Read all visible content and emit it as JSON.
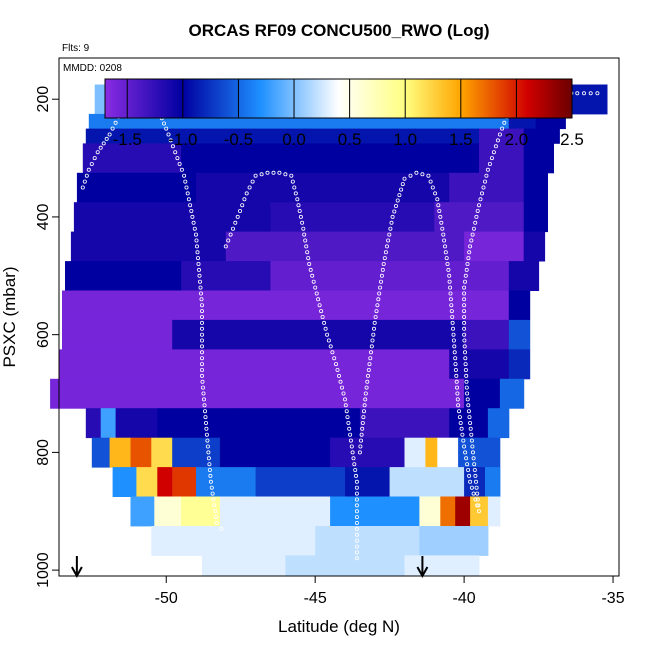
{
  "chart_data": {
    "type": "heatmap",
    "title": "ORCAS RF09 CONCU500_RWO (Log)",
    "xlabel": "Latitude (deg N)",
    "ylabel": "PSXC (mbar)",
    "annotations": {
      "flights": "Flts: 9",
      "mmdd": "MMDD: 0208"
    },
    "xlim": [
      -53.6,
      -34.8
    ],
    "ylim": [
      1010,
      130
    ],
    "y_reversed": true,
    "x_ticks": [
      -50,
      -45,
      -40,
      -35
    ],
    "x_tick_labels": [
      "-50",
      "-45",
      "-40",
      "-35"
    ],
    "y_ticks": [
      200,
      400,
      600,
      800,
      1000
    ],
    "y_tick_labels": [
      "200",
      "400",
      "600",
      "800",
      "1000"
    ],
    "colorbar": {
      "min": -1.7,
      "max": 2.5,
      "ticks": [
        -1.5,
        -1.0,
        -0.5,
        0.0,
        0.5,
        1.0,
        1.5,
        2.0,
        2.5
      ],
      "tick_labels": [
        "-1.5",
        "-1.0",
        "-0.5",
        "0.0",
        "0.5",
        "1.0",
        "1.5",
        "2.0",
        "2.5"
      ],
      "stops": [
        "#8a2be2",
        "#0000a0",
        "#1e90ff",
        "#ffffff",
        "#ffff80",
        "#ffa500",
        "#d00000",
        "#6b0000"
      ],
      "stop_values": [
        -1.7,
        -1.0,
        -0.3,
        0.4,
        1.0,
        1.5,
        2.1,
        2.5
      ]
    },
    "rows": [
      {
        "p_top": 175,
        "p_bot": 225,
        "segments": [
          [
            -52.4,
            -37.2,
            0.0
          ],
          [
            -37.2,
            -36.4,
            -0.4
          ],
          [
            -36.4,
            -35.2,
            -0.9
          ]
        ]
      },
      {
        "p_top": 225,
        "p_bot": 250,
        "segments": [
          [
            -52.6,
            -38.5,
            -0.4
          ],
          [
            -38.5,
            -37.6,
            -0.9
          ],
          [
            -37.6,
            -36.6,
            -1.0
          ]
        ]
      },
      {
        "p_top": 250,
        "p_bot": 275,
        "segments": [
          [
            -52.7,
            -39.5,
            -0.9
          ],
          [
            -39.5,
            -38.0,
            -1.3
          ],
          [
            -38.0,
            -36.8,
            -1.0
          ]
        ]
      },
      {
        "p_top": 275,
        "p_bot": 325,
        "segments": [
          [
            -52.8,
            -49.5,
            -1.2
          ],
          [
            -49.5,
            -39.5,
            -1.0
          ],
          [
            -39.5,
            -38.0,
            -1.3
          ],
          [
            -38.0,
            -37.0,
            -1.0
          ]
        ]
      },
      {
        "p_top": 325,
        "p_bot": 375,
        "segments": [
          [
            -53.0,
            -49.0,
            -1.0
          ],
          [
            -49.0,
            -40.5,
            -1.1
          ],
          [
            -40.5,
            -38.0,
            -1.3
          ],
          [
            -38.0,
            -37.2,
            -1.0
          ]
        ]
      },
      {
        "p_top": 375,
        "p_bot": 425,
        "segments": [
          [
            -53.1,
            -46.5,
            -1.1
          ],
          [
            -46.5,
            -41.0,
            -1.2
          ],
          [
            -41.0,
            -38.0,
            -1.4
          ],
          [
            -38.0,
            -37.2,
            -1.0
          ]
        ]
      },
      {
        "p_top": 425,
        "p_bot": 475,
        "segments": [
          [
            -53.2,
            -48.0,
            -1.1
          ],
          [
            -48.0,
            -40.0,
            -1.4
          ],
          [
            -40.0,
            -38.0,
            -1.6
          ],
          [
            -38.0,
            -37.3,
            -1.1
          ]
        ]
      },
      {
        "p_top": 475,
        "p_bot": 525,
        "segments": [
          [
            -53.4,
            -49.5,
            -1.0
          ],
          [
            -49.5,
            -46.5,
            -1.2
          ],
          [
            -46.5,
            -38.5,
            -1.5
          ],
          [
            -38.5,
            -37.5,
            -1.1
          ]
        ]
      },
      {
        "p_top": 525,
        "p_bot": 575,
        "segments": [
          [
            -53.5,
            -38.5,
            -1.6
          ],
          [
            -38.5,
            -37.8,
            -1.0
          ]
        ]
      },
      {
        "p_top": 575,
        "p_bot": 625,
        "segments": [
          [
            -53.5,
            -49.8,
            -1.6
          ],
          [
            -49.8,
            -40.0,
            -1.1
          ],
          [
            -40.0,
            -38.5,
            -1.3
          ],
          [
            -38.5,
            -37.8,
            -0.6
          ]
        ]
      },
      {
        "p_top": 625,
        "p_bot": 675,
        "segments": [
          [
            -53.6,
            -40.5,
            -1.6
          ],
          [
            -40.5,
            -38.5,
            -1.1
          ],
          [
            -38.5,
            -37.8,
            -0.8
          ]
        ]
      },
      {
        "p_top": 675,
        "p_bot": 725,
        "segments": [
          [
            -53.9,
            -40.0,
            -1.6
          ],
          [
            -40.0,
            -38.8,
            -1.0
          ],
          [
            -38.8,
            -38.0,
            -0.5
          ]
        ]
      },
      {
        "p_top": 725,
        "p_bot": 775,
        "segments": [
          [
            -52.7,
            -52.2,
            -1.2
          ],
          [
            -52.2,
            -51.7,
            -0.2
          ],
          [
            -51.7,
            -50.3,
            -1.1
          ],
          [
            -50.3,
            -47.7,
            -1.0
          ],
          [
            -47.7,
            -43.5,
            -1.0
          ],
          [
            -43.5,
            -40.5,
            -1.3
          ],
          [
            -40.5,
            -39.2,
            -1.0
          ],
          [
            -39.2,
            -38.5,
            -0.5
          ]
        ]
      },
      {
        "p_top": 775,
        "p_bot": 825,
        "segments": [
          [
            -52.5,
            -51.9,
            -0.6
          ],
          [
            -51.9,
            -51.2,
            1.4
          ],
          [
            -51.2,
            -50.5,
            1.8
          ],
          [
            -50.5,
            -49.8,
            1.2
          ],
          [
            -49.8,
            -48.2,
            -0.7
          ],
          [
            -48.2,
            -44.5,
            -1.0
          ],
          [
            -44.5,
            -42.0,
            -1.2
          ],
          [
            -42.0,
            -41.3,
            0.3
          ],
          [
            -41.3,
            -40.9,
            1.4
          ],
          [
            -40.9,
            -40.2,
            0.4
          ],
          [
            -40.2,
            -38.8,
            -0.6
          ]
        ]
      },
      {
        "p_top": 825,
        "p_bot": 875,
        "segments": [
          [
            -51.8,
            -51.0,
            -0.3
          ],
          [
            -51.0,
            -50.3,
            1.2
          ],
          [
            -50.3,
            -49.8,
            2.1
          ],
          [
            -49.8,
            -49.0,
            1.9
          ],
          [
            -49.0,
            -47.0,
            -0.4
          ],
          [
            -47.0,
            -44.0,
            -0.7
          ],
          [
            -44.0,
            -42.5,
            -0.9
          ],
          [
            -42.5,
            -40.0,
            0.2
          ],
          [
            -40.0,
            -39.3,
            -0.8
          ],
          [
            -39.3,
            -38.8,
            -0.4
          ]
        ]
      },
      {
        "p_top": 875,
        "p_bot": 925,
        "segments": [
          [
            -51.2,
            -50.4,
            -0.2
          ],
          [
            -50.4,
            -49.5,
            0.6
          ],
          [
            -49.5,
            -48.2,
            0.9
          ],
          [
            -48.2,
            -44.5,
            0.3
          ],
          [
            -44.5,
            -41.5,
            -0.3
          ],
          [
            -41.5,
            -40.8,
            0.6
          ],
          [
            -40.8,
            -40.3,
            1.7
          ],
          [
            -40.3,
            -39.8,
            2.3
          ],
          [
            -39.8,
            -39.2,
            1.3
          ],
          [
            -39.2,
            -38.8,
            0.3
          ]
        ]
      },
      {
        "p_top": 925,
        "p_bot": 975,
        "segments": [
          [
            -50.5,
            -49.0,
            0.3
          ],
          [
            -49.0,
            -45.0,
            0.3
          ],
          [
            -45.0,
            -41.5,
            0.2
          ],
          [
            -41.5,
            -39.2,
            0.1
          ]
        ]
      },
      {
        "p_top": 975,
        "p_bot": 1012,
        "segments": [
          [
            -48.8,
            -46.0,
            0.3
          ],
          [
            -46.0,
            -42.0,
            0.2
          ],
          [
            -42.0,
            -39.5,
            0.3
          ]
        ]
      }
    ],
    "track": [
      [
        [
          -52.8,
          350
        ],
        [
          -52.6,
          320
        ],
        [
          -52.3,
          290
        ],
        [
          -51.9,
          260
        ],
        [
          -51.6,
          230
        ],
        [
          -51.3,
          205
        ],
        [
          -51.0,
          190
        ],
        [
          -50.6,
          190
        ],
        [
          -50.3,
          215
        ],
        [
          -50.0,
          250
        ],
        [
          -49.7,
          290
        ],
        [
          -49.4,
          330
        ],
        [
          -49.2,
          380
        ],
        [
          -49.0,
          430
        ],
        [
          -48.9,
          490
        ],
        [
          -48.8,
          550
        ],
        [
          -48.8,
          610
        ],
        [
          -48.8,
          670
        ],
        [
          -48.7,
          730
        ],
        [
          -48.6,
          790
        ],
        [
          -48.5,
          850
        ],
        [
          -48.3,
          920
        ],
        [
          -48.0,
          940
        ]
      ],
      [
        [
          -48.0,
          450
        ],
        [
          -47.6,
          400
        ],
        [
          -47.3,
          360
        ],
        [
          -47.0,
          330
        ],
        [
          -46.6,
          325
        ],
        [
          -46.2,
          325
        ],
        [
          -45.8,
          330
        ],
        [
          -45.6,
          370
        ],
        [
          -45.4,
          420
        ],
        [
          -45.2,
          480
        ],
        [
          -44.9,
          540
        ],
        [
          -44.6,
          600
        ],
        [
          -44.3,
          650
        ],
        [
          -44.0,
          710
        ],
        [
          -43.8,
          780
        ],
        [
          -43.6,
          850
        ],
        [
          -43.6,
          920
        ],
        [
          -43.6,
          990
        ]
      ],
      [
        [
          -43.5,
          800
        ],
        [
          -43.3,
          700
        ],
        [
          -43.0,
          580
        ],
        [
          -42.7,
          480
        ],
        [
          -42.4,
          400
        ],
        [
          -42.0,
          335
        ],
        [
          -41.6,
          325
        ],
        [
          -41.2,
          330
        ],
        [
          -40.9,
          370
        ],
        [
          -40.7,
          430
        ],
        [
          -40.5,
          500
        ],
        [
          -40.4,
          570
        ],
        [
          -40.3,
          640
        ],
        [
          -40.2,
          720
        ],
        [
          -40.0,
          790
        ],
        [
          -39.8,
          850
        ],
        [
          -39.5,
          900
        ]
      ],
      [
        [
          -39.5,
          900
        ],
        [
          -39.7,
          800
        ],
        [
          -39.9,
          700
        ],
        [
          -40.0,
          600
        ],
        [
          -40.0,
          520
        ],
        [
          -39.8,
          450
        ],
        [
          -39.5,
          380
        ],
        [
          -39.2,
          320
        ],
        [
          -38.8,
          260
        ],
        [
          -38.5,
          220
        ],
        [
          -38.2,
          195
        ],
        [
          -37.8,
          190
        ],
        [
          -37.0,
          190
        ],
        [
          -36.2,
          190
        ],
        [
          -35.3,
          190
        ]
      ]
    ],
    "arrows_x": [
      -53.0,
      -41.4
    ]
  }
}
